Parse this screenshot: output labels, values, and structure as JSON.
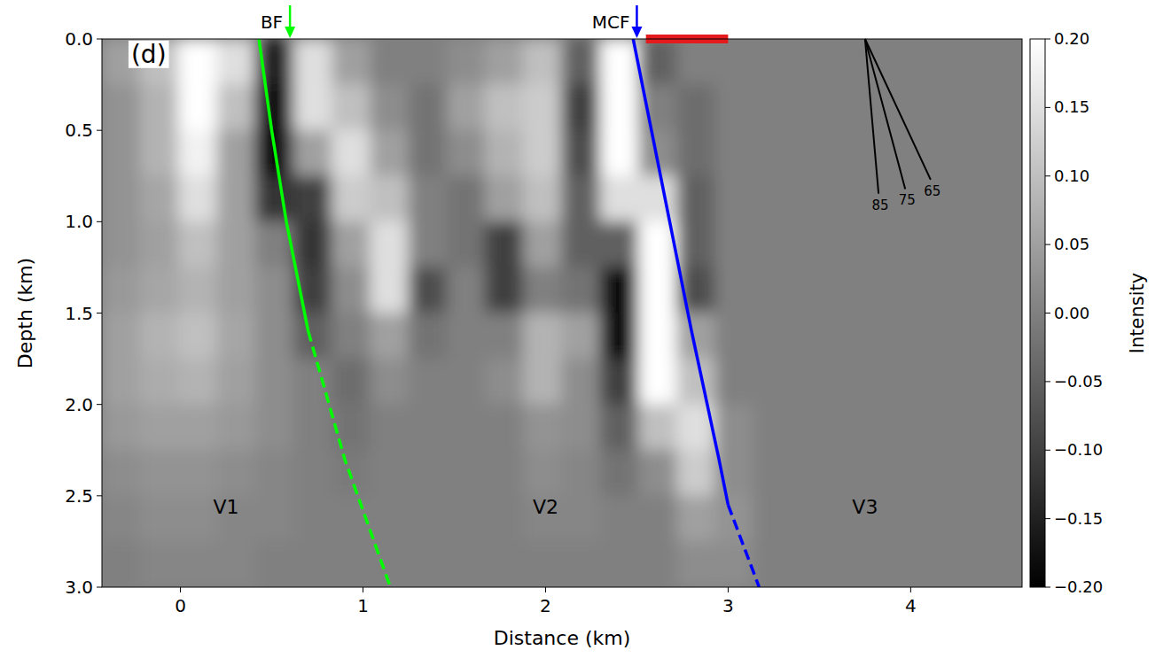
{
  "chart_data": {
    "type": "heatmap",
    "x_label": "Distance (km)",
    "y_label": "Depth (km)",
    "xlim": [
      -0.43,
      4.61
    ],
    "ylim": [
      0,
      3
    ],
    "xticks": [
      0,
      1,
      2,
      3,
      4
    ],
    "yticks": [
      {
        "value": 0,
        "label": "0.0"
      },
      0.5,
      {
        "value": 1,
        "label": "1.0"
      },
      1.5,
      {
        "value": 2,
        "label": "2.0"
      },
      2.5,
      {
        "value": 3,
        "label": "3.0"
      }
    ],
    "x": [
      -0.325,
      -0.115,
      0.095,
      0.305,
      0.515,
      0.725,
      0.935,
      1.145,
      1.355,
      1.565,
      1.775,
      1.985,
      2.195,
      2.405,
      2.615,
      2.825,
      3.035,
      3.245,
      3.455,
      3.665,
      3.875,
      4.085,
      4.295,
      4.505
    ],
    "y": [
      0.125,
      0.375,
      0.625,
      0.875,
      1.125,
      1.375,
      1.625,
      1.875,
      2.125,
      2.375,
      2.625,
      2.875
    ],
    "cells": [
      [
        0.05,
        0.1,
        0.2,
        0.15,
        -0.15,
        0.15,
        0.05,
        0,
        0,
        0.02,
        0.05,
        0.1,
        -0.05,
        0.2,
        -0.05,
        0,
        0,
        0,
        0,
        0,
        0,
        0,
        0,
        0
      ],
      [
        0.03,
        0.08,
        0.2,
        0.1,
        -0.18,
        0.15,
        0.1,
        0.02,
        -0.02,
        0.05,
        0.1,
        0.12,
        -0.1,
        0.2,
        0,
        -0.03,
        0,
        0,
        0,
        0,
        0,
        0,
        0,
        0
      ],
      [
        0.03,
        0.08,
        0.18,
        0.05,
        -0.18,
        0.05,
        0.15,
        0.05,
        -0.02,
        0.02,
        0.08,
        0.12,
        -0.08,
        0.2,
        0.02,
        -0.03,
        0,
        0,
        0,
        0,
        0,
        0,
        0,
        0
      ],
      [
        0.03,
        0.06,
        0.15,
        0.05,
        -0.12,
        -0.1,
        0.12,
        0.1,
        0,
        -0.02,
        0.05,
        0.1,
        -0.05,
        0.15,
        0.15,
        -0.05,
        0,
        0,
        0,
        0,
        0,
        0,
        0,
        0
      ],
      [
        0.03,
        0.05,
        0.1,
        0.05,
        0,
        -0.12,
        0.05,
        0.15,
        0,
        -0.02,
        -0.1,
        0.05,
        -0.05,
        -0.05,
        0.2,
        -0.05,
        0,
        0,
        0,
        0,
        0,
        0,
        0,
        0
      ],
      [
        0.04,
        0.06,
        0.08,
        0.05,
        0.02,
        -0.1,
        0.02,
        0.15,
        -0.08,
        0,
        -0.1,
        0,
        -0.02,
        -0.18,
        0.2,
        -0.08,
        0,
        0,
        0,
        0,
        0,
        0,
        0,
        0
      ],
      [
        0.05,
        0.08,
        0.1,
        0.06,
        0.02,
        -0.05,
        0,
        0.05,
        -0.02,
        0,
        0,
        0.08,
        0.05,
        -0.18,
        0.2,
        0.05,
        0,
        0,
        0,
        0,
        0,
        0,
        0,
        0
      ],
      [
        0.05,
        0.07,
        0.08,
        0.05,
        0.02,
        0,
        -0.03,
        0.02,
        0,
        0,
        0.02,
        0.08,
        0.02,
        -0.1,
        0.2,
        0.1,
        0,
        0,
        0,
        0,
        0,
        0,
        0,
        0
      ],
      [
        0.04,
        0.05,
        0.05,
        0.04,
        0.02,
        0,
        -0.02,
        0,
        0,
        0,
        0,
        0.03,
        0.02,
        -0.05,
        0.1,
        0.15,
        0.02,
        0,
        0,
        0,
        0,
        0,
        0,
        0
      ],
      [
        0.02,
        0.03,
        0.03,
        0.02,
        0.01,
        0,
        -0.01,
        0,
        0,
        0,
        0,
        0.02,
        0.01,
        -0.02,
        0.02,
        0.12,
        0.02,
        0,
        0,
        0,
        0,
        0,
        0,
        0
      ],
      [
        0.01,
        0.02,
        0.02,
        0.01,
        0.01,
        0,
        0,
        0,
        0,
        0,
        0,
        0.01,
        0.01,
        0,
        0,
        0.05,
        0.03,
        0,
        0,
        0,
        0,
        0,
        0,
        0
      ],
      [
        0,
        0.01,
        0.01,
        0.01,
        0,
        0,
        0,
        0,
        0,
        0,
        0,
        0,
        0,
        0,
        0,
        0.02,
        0.02,
        0,
        0,
        0,
        0,
        0,
        0,
        0
      ]
    ],
    "colorbar": {
      "label": "Intensity",
      "range": [
        -0.2,
        0.2
      ],
      "ticks": [
        {
          "value": 0.2,
          "label": "0.20"
        },
        {
          "value": 0.15,
          "label": "0.15"
        },
        {
          "value": 0.1,
          "label": "0.10"
        },
        {
          "value": 0.05,
          "label": "0.05"
        },
        {
          "value": 0,
          "label": "0.00"
        },
        {
          "value": -0.05,
          "label": "−0.05"
        },
        {
          "value": -0.1,
          "label": "−0.10"
        },
        {
          "value": -0.15,
          "label": "−0.15"
        },
        {
          "value": -0.2,
          "label": "−0.20"
        }
      ]
    },
    "series": [
      {
        "type": "line",
        "color": "#00ff00",
        "line_style": "solid",
        "x": [
          0.43,
          0.5,
          0.58,
          0.7
        ],
        "y": [
          0,
          0.5,
          1.0,
          1.6
        ]
      },
      {
        "type": "line",
        "color": "#00ff00",
        "line_style": "dashed",
        "x": [
          0.7,
          0.9,
          1.15
        ],
        "y": [
          1.6,
          2.3,
          3.0
        ]
      },
      {
        "type": "line",
        "color": "#0000ff",
        "line_style": "solid",
        "x": [
          2.48,
          2.58,
          2.68,
          2.8,
          2.95,
          3.0
        ],
        "y": [
          0,
          0.5,
          1.0,
          1.6,
          2.3,
          2.55
        ]
      },
      {
        "type": "line",
        "color": "#0000ff",
        "line_style": "dashed",
        "x": [
          3.0,
          3.17
        ],
        "y": [
          2.55,
          3.0
        ]
      },
      {
        "type": "segment",
        "color": "#e41a1c",
        "line_style": "solid",
        "x": [
          2.55,
          3.0
        ],
        "y": [
          0,
          0
        ]
      }
    ],
    "annotations": [
      {
        "text": "BF",
        "x": 0.6,
        "color": "#00ff00",
        "marker": "arrow"
      },
      {
        "text": "MCF",
        "x": 2.5,
        "color": "#0000ff",
        "marker": "arrow"
      },
      {
        "text": "V1",
        "x": 0.25,
        "y": 2.6
      },
      {
        "text": "V2",
        "x": 2.0,
        "y": 2.6
      },
      {
        "text": "V3",
        "x": 3.75,
        "y": 2.6
      },
      {
        "text": "(d)",
        "x": -0.27,
        "y": 0.13
      }
    ],
    "dip_guides": {
      "origin": [
        3.75,
        0
      ],
      "angles": [
        85,
        75,
        65
      ],
      "length": 0.85
    }
  }
}
